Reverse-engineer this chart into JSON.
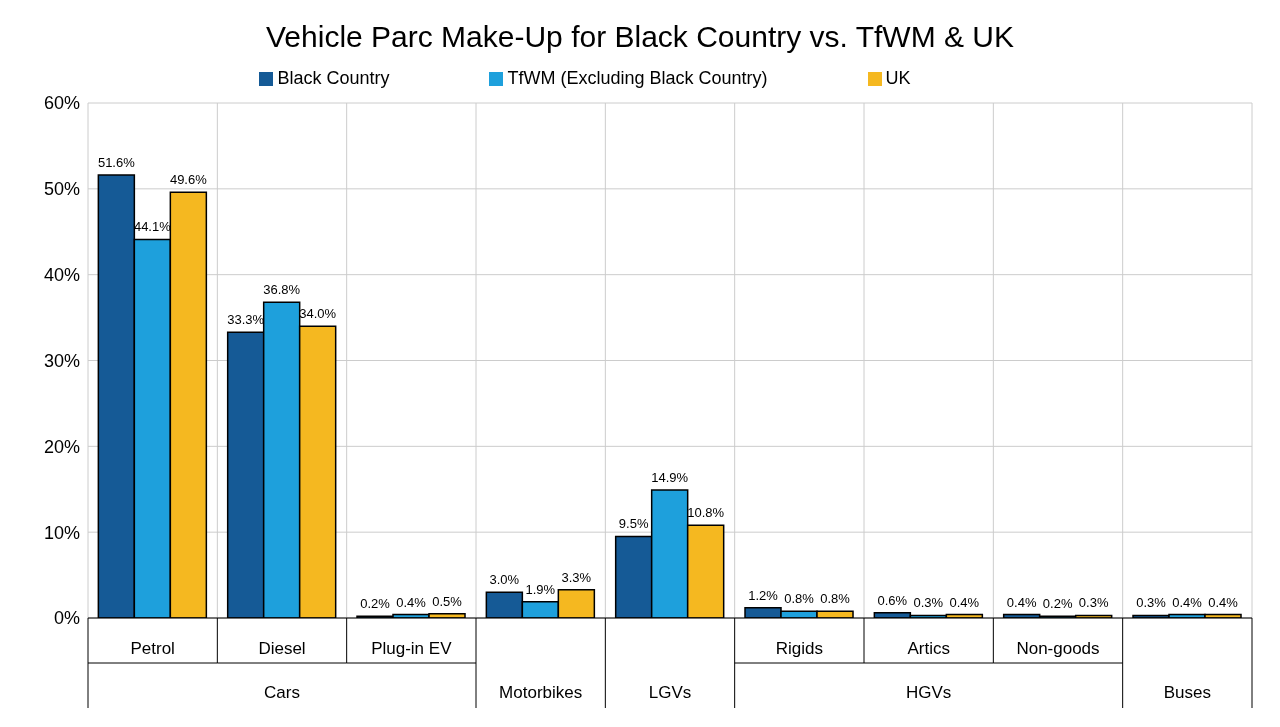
{
  "chart_data": {
    "type": "bar",
    "title": "Vehicle Parc Make-Up for Black Country vs. TfWM & UK",
    "categories": [
      "Petrol",
      "Diesel",
      "Plug-in EV",
      null,
      null,
      "Rigids",
      "Artics",
      "Non-goods",
      null
    ],
    "annotations": [
      "Cars",
      "Motorbikes",
      "LGVs",
      "HGVs",
      "Buses"
    ],
    "series": [
      {
        "name": "Black Country",
        "color": "#155a96",
        "values": [
          51.6,
          33.3,
          0.2,
          3.0,
          9.5,
          1.2,
          0.6,
          0.4,
          0.3
        ],
        "value_labels": [
          "51.6%",
          "33.3%",
          "0.2%",
          "3.0%",
          "9.5%",
          "1.2%",
          "0.6%",
          "0.4%",
          "0.3%"
        ]
      },
      {
        "name": "TfWM (Excluding Black Country)",
        "color": "#1ea0dc",
        "values": [
          44.1,
          36.8,
          0.4,
          1.9,
          14.9,
          0.8,
          0.3,
          0.2,
          0.4
        ],
        "value_labels": [
          "44.1%",
          "36.8%",
          "0.4%",
          "1.9%",
          "14.9%",
          "0.8%",
          "0.3%",
          "0.2%",
          "0.4%"
        ]
      },
      {
        "name": "UK",
        "color": "#f5b820",
        "values": [
          49.6,
          34.0,
          0.5,
          3.3,
          10.8,
          0.8,
          0.4,
          0.3,
          0.4
        ],
        "value_labels": [
          "49.6%",
          "34.0%",
          "0.5%",
          "3.3%",
          "10.8%",
          "0.8%",
          "0.4%",
          "0.3%",
          "0.4%"
        ]
      }
    ],
    "ylim": [
      0,
      60
    ],
    "yticks": [
      {
        "value": 0,
        "label": "0%"
      },
      {
        "value": 10,
        "label": "10%"
      },
      {
        "value": 20,
        "label": "20%"
      },
      {
        "value": 30,
        "label": "30%"
      },
      {
        "value": 40,
        "label": "40%"
      },
      {
        "value": 50,
        "label": "50%"
      },
      {
        "value": 60,
        "label": "60%"
      }
    ],
    "grid": true,
    "legend": "top"
  }
}
